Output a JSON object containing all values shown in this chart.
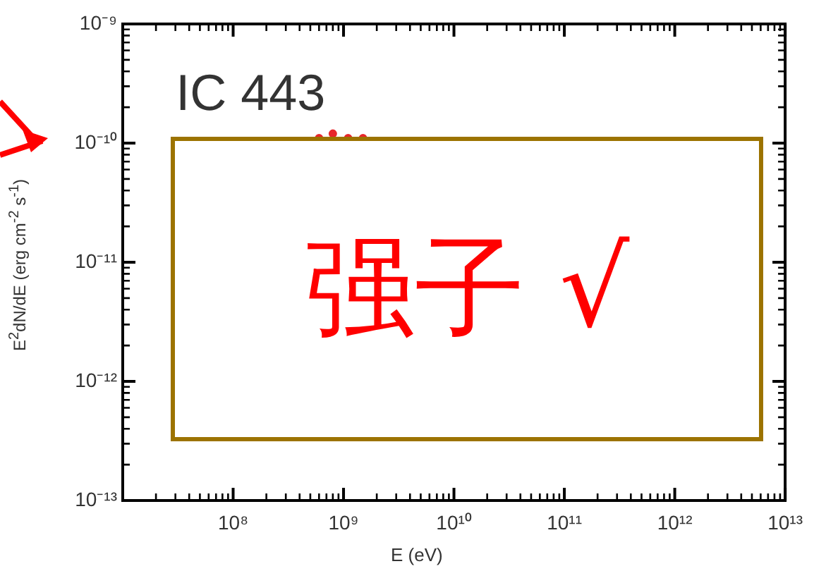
{
  "chart_data": {
    "type": "scatter",
    "xlabel": "E (eV)",
    "ylabel": "E$^{2}$dN/dE (erg cm$^{-2}$ s$^{-1}$)",
    "annotations": [
      "IC 443",
      "强子 √"
    ],
    "log": "xy",
    "legend": false,
    "grid": false,
    "marker": "circle",
    "xlim": [
      10000000.0,
      10000000000000.0
    ],
    "xticks": [
      {
        "value": 100000000.0,
        "label": "10⁸"
      },
      {
        "value": 1000000000.0,
        "label": "10⁹"
      },
      {
        "value": 10000000000.0,
        "label": "10¹⁰"
      },
      {
        "value": 100000000000.0,
        "label": "10¹¹"
      },
      {
        "value": 1000000000000.0,
        "label": "10¹²"
      },
      {
        "value": 10000000000000.0,
        "label": "10¹³"
      }
    ],
    "ylim": [
      1e-13,
      1e-09
    ],
    "yticks": [
      {
        "value": 1e-13,
        "label": "10⁻¹³"
      },
      {
        "value": 1e-12,
        "label": "10⁻¹²"
      },
      {
        "value": 1e-11,
        "label": "10⁻¹¹"
      },
      {
        "value": 1e-10,
        "label": "10⁻¹⁰"
      },
      {
        "value": 1e-09,
        "label": "10⁻⁹"
      }
    ],
    "series": [
      {
        "color": "#e8262b",
        "x": [
          600000000.0,
          800000000.0,
          1100000000.0,
          1500000000.0
        ],
        "values": [
          1.1e-10,
          1.2e-10,
          1.1e-10,
          1.1e-10
        ]
      }
    ]
  }
}
